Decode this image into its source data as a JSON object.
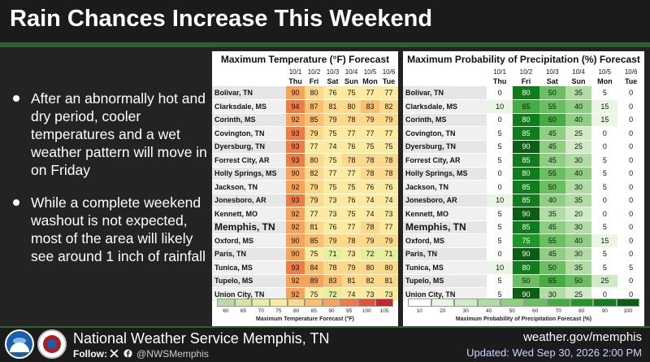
{
  "header": {
    "title": "Rain Chances Increase This Weekend"
  },
  "bullets": [
    "After an abnormally hot and dry period, cooler temperatures and a wet weather pattern will move in on Friday",
    "While a complete weekend washout is not expected, most of the area will likely see around 1 inch of rainfall"
  ],
  "temp_table": {
    "title": "Maximum Temperature (°F) Forecast",
    "dates": [
      "10/1",
      "10/2",
      "10/3",
      "10/4",
      "10/5",
      "10/6"
    ],
    "days": [
      "Thu",
      "Fri",
      "Sat",
      "Sun",
      "Mon",
      "Tue"
    ],
    "legend_ticks": [
      "60",
      "65",
      "70",
      "75",
      "80",
      "85",
      "90",
      "95",
      "100",
      "105"
    ],
    "legend_label": "Maximum Temperature Forecast (°F)"
  },
  "precip_table": {
    "title": "Maximum Probability of Precipitation (%) Forecast",
    "dates": [
      "10/1",
      "10/2",
      "10/3",
      "10/4",
      "10/5",
      "10/6"
    ],
    "days": [
      "Thu",
      "Fri",
      "Sat",
      "Sun",
      "Mon",
      "Tue"
    ],
    "legend_ticks": [
      "10",
      "20",
      "30",
      "40",
      "50",
      "60",
      "70",
      "80",
      "90",
      "100"
    ],
    "legend_label": "Maximum Probability of Precipitation Forecast (%)"
  },
  "cities": [
    {
      "name": "Bolivar, TN",
      "temps": [
        90,
        80,
        76,
        75,
        77,
        77
      ],
      "pop": [
        0,
        80,
        50,
        35,
        5,
        0
      ]
    },
    {
      "name": "Clarksdale, MS",
      "temps": [
        94,
        87,
        81,
        80,
        83,
        82
      ],
      "pop": [
        10,
        65,
        55,
        40,
        15,
        0
      ]
    },
    {
      "name": "Corinth, MS",
      "temps": [
        92,
        85,
        79,
        78,
        79,
        79
      ],
      "pop": [
        0,
        80,
        60,
        40,
        15,
        0
      ]
    },
    {
      "name": "Covington, TN",
      "temps": [
        93,
        79,
        75,
        77,
        77,
        77
      ],
      "pop": [
        5,
        85,
        45,
        25,
        0,
        0
      ]
    },
    {
      "name": "Dyersburg, TN",
      "temps": [
        93,
        77,
        74,
        76,
        75,
        75
      ],
      "pop": [
        5,
        90,
        45,
        25,
        0,
        0
      ]
    },
    {
      "name": "Forrest City, AR",
      "temps": [
        93,
        80,
        75,
        78,
        78,
        78
      ],
      "pop": [
        5,
        85,
        45,
        30,
        5,
        0
      ]
    },
    {
      "name": "Holly Springs, MS",
      "temps": [
        90,
        82,
        77,
        77,
        78,
        78
      ],
      "pop": [
        0,
        80,
        55,
        40,
        5,
        0
      ]
    },
    {
      "name": "Jackson, TN",
      "temps": [
        92,
        79,
        75,
        75,
        76,
        76
      ],
      "pop": [
        0,
        85,
        50,
        30,
        5,
        0
      ]
    },
    {
      "name": "Jonesboro, AR",
      "temps": [
        93,
        79,
        73,
        76,
        74,
        74
      ],
      "pop": [
        10,
        85,
        40,
        35,
        0,
        0
      ]
    },
    {
      "name": "Kennett, MO",
      "temps": [
        92,
        77,
        73,
        75,
        74,
        73
      ],
      "pop": [
        5,
        90,
        35,
        20,
        0,
        0
      ]
    },
    {
      "name": "Memphis, TN",
      "big": true,
      "temps": [
        92,
        81,
        76,
        77,
        78,
        77
      ],
      "pop": [
        5,
        85,
        45,
        30,
        5,
        0
      ]
    },
    {
      "name": "Oxford, MS",
      "temps": [
        90,
        85,
        79,
        78,
        79,
        79
      ],
      "pop": [
        5,
        75,
        55,
        40,
        15,
        0
      ]
    },
    {
      "name": "Paris, TN",
      "temps": [
        90,
        75,
        71,
        73,
        72,
        71
      ],
      "pop": [
        0,
        90,
        45,
        30,
        5,
        0
      ]
    },
    {
      "name": "Tunica, MS",
      "temps": [
        93,
        84,
        78,
        79,
        80,
        80
      ],
      "pop": [
        10,
        80,
        50,
        35,
        5,
        5
      ]
    },
    {
      "name": "Tupelo, MS",
      "temps": [
        92,
        89,
        83,
        81,
        82,
        81
      ],
      "pop": [
        5,
        50,
        65,
        50,
        25,
        0
      ]
    },
    {
      "name": "Union City, TN",
      "temps": [
        92,
        75,
        72,
        74,
        73,
        73
      ],
      "pop": [
        5,
        90,
        30,
        25,
        0,
        0
      ]
    }
  ],
  "footer": {
    "org_name": "National Weather Service Memphis, TN",
    "follow_label": "Follow:",
    "handle": "@NWSMemphis",
    "site": "weather.gov/memphis",
    "updated": "Updated: Wed Sep 30, 2026 2:00 PM"
  },
  "colors": {
    "header_bg": "#1b1b1b",
    "accent_green": "#2f5f2f",
    "temp_scale": [
      "#b8d9a8",
      "#cfe6a0",
      "#e6ef9c",
      "#fbeaa0",
      "#fbd88a",
      "#f9c070",
      "#f6a45a",
      "#ee7c46",
      "#e1523a",
      "#c2262e"
    ],
    "pop_scale": [
      "#ffffff",
      "#eaf5e3",
      "#cfeac4",
      "#b1dda4",
      "#8ecf82",
      "#6abf60",
      "#44ac41",
      "#219628",
      "#0f7d1b",
      "#0a5f12"
    ]
  }
}
